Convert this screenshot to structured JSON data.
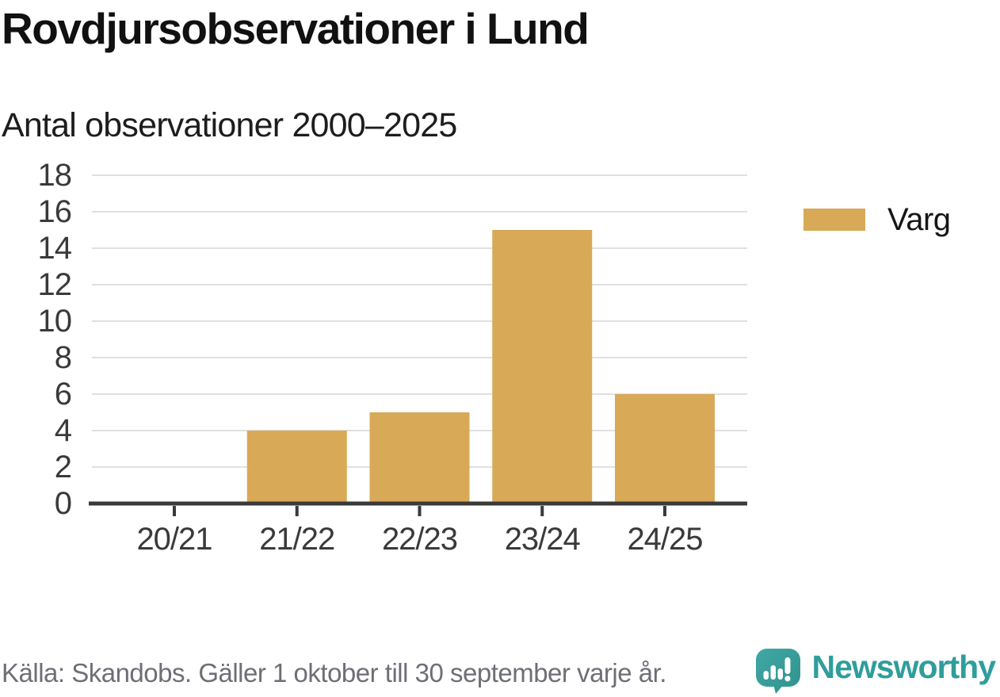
{
  "header": {
    "title": "Rovdjursobservationer i Lund",
    "subtitle": "Antal observationer 2000–2025"
  },
  "chart_data": {
    "type": "bar",
    "categories": [
      "20/21",
      "21/22",
      "22/23",
      "23/24",
      "24/25"
    ],
    "series": [
      {
        "name": "Varg",
        "values": [
          0,
          4,
          5,
          15,
          6
        ],
        "color": "#d8a957"
      }
    ],
    "title": "Rovdjursobservationer i Lund",
    "subtitle": "Antal observationer 2000–2025",
    "xlabel": "",
    "ylabel": "",
    "ylim": [
      0,
      18
    ],
    "ytick_step": 2,
    "grid": true,
    "legend_position": "right"
  },
  "legend": {
    "items": [
      {
        "label": "Varg",
        "color": "#d8a957"
      }
    ]
  },
  "footer": {
    "source": "Källa: Skandobs. Gäller 1 oktober till 30 september varje år.",
    "brand": "Newsworthy"
  },
  "colors": {
    "bar": "#d8a957",
    "grid": "#e0e0e0",
    "axis": "#3a3a3a",
    "tick_label": "#3a3a3a",
    "title": "#111111",
    "source_text": "#6e6e76",
    "brand_teal": "#3aa39f",
    "brand_teal_dark": "#2f918e",
    "wordmark_teal": "#2f9e9b"
  }
}
